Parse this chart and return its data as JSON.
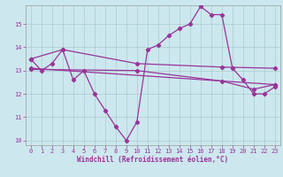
{
  "xlabel": "Windchill (Refroidissement éolien,°C)",
  "bg_color": "#cce8ee",
  "grid_color": "#aacccc",
  "line_color": "#993399",
  "ylim": [
    9.8,
    15.8
  ],
  "xlim": [
    -0.5,
    23.5
  ],
  "yticks": [
    10,
    11,
    12,
    13,
    14,
    15
  ],
  "xticks": [
    0,
    1,
    2,
    3,
    4,
    5,
    6,
    7,
    8,
    9,
    10,
    11,
    12,
    13,
    14,
    15,
    16,
    17,
    18,
    19,
    20,
    21,
    22,
    23
  ],
  "line1_x": [
    0,
    1,
    2,
    3,
    4,
    5,
    6,
    7,
    8,
    9,
    10,
    11,
    12,
    13,
    14,
    15,
    16,
    17,
    18,
    19,
    20,
    21,
    22,
    23
  ],
  "line1_y": [
    13.5,
    13.0,
    13.3,
    13.9,
    12.6,
    13.0,
    12.0,
    11.3,
    10.6,
    10.0,
    10.8,
    13.9,
    14.1,
    14.5,
    14.8,
    15.0,
    15.75,
    15.4,
    15.4,
    13.1,
    12.6,
    12.0,
    12.0,
    12.3
  ],
  "line2_x": [
    0,
    3,
    10,
    18,
    23
  ],
  "line2_y": [
    13.5,
    13.9,
    13.3,
    13.15,
    13.1
  ],
  "line3_x": [
    0,
    23
  ],
  "line3_y": [
    13.1,
    12.4
  ],
  "line4_x": [
    0,
    10,
    18,
    21,
    23
  ],
  "line4_y": [
    13.05,
    13.0,
    12.55,
    12.2,
    12.4
  ]
}
